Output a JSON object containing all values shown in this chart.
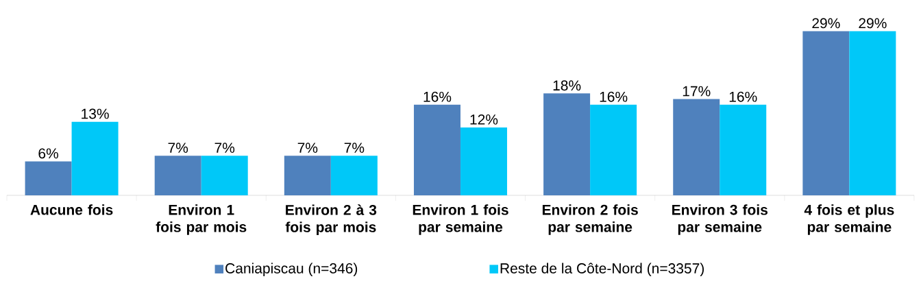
{
  "chart_data": {
    "type": "bar",
    "categories": [
      "Aucune fois",
      "Environ 1 fois par mois",
      "Environ 2 à 3 fois par mois",
      "Environ 1 fois par semaine",
      "Environ 2 fois par semaine",
      "Environ 3 fois par semaine",
      "4 fois et plus par semaine"
    ],
    "series": [
      {
        "name": "Caniapiscau (n=346)",
        "color": "#4f81bd",
        "values": [
          6,
          7,
          7,
          16,
          18,
          17,
          29
        ],
        "value_labels": [
          "6%",
          "7%",
          "7%",
          "16%",
          "18%",
          "17%",
          "29%"
        ]
      },
      {
        "name": "Reste de la Côte-Nord (n=3357)",
        "color": "#00c8f8",
        "values": [
          13,
          7,
          7,
          12,
          16,
          16,
          29
        ],
        "value_labels": [
          "13%",
          "7%",
          "7%",
          "12%",
          "16%",
          "16%",
          "29%"
        ]
      }
    ],
    "legend": "bottom"
  }
}
